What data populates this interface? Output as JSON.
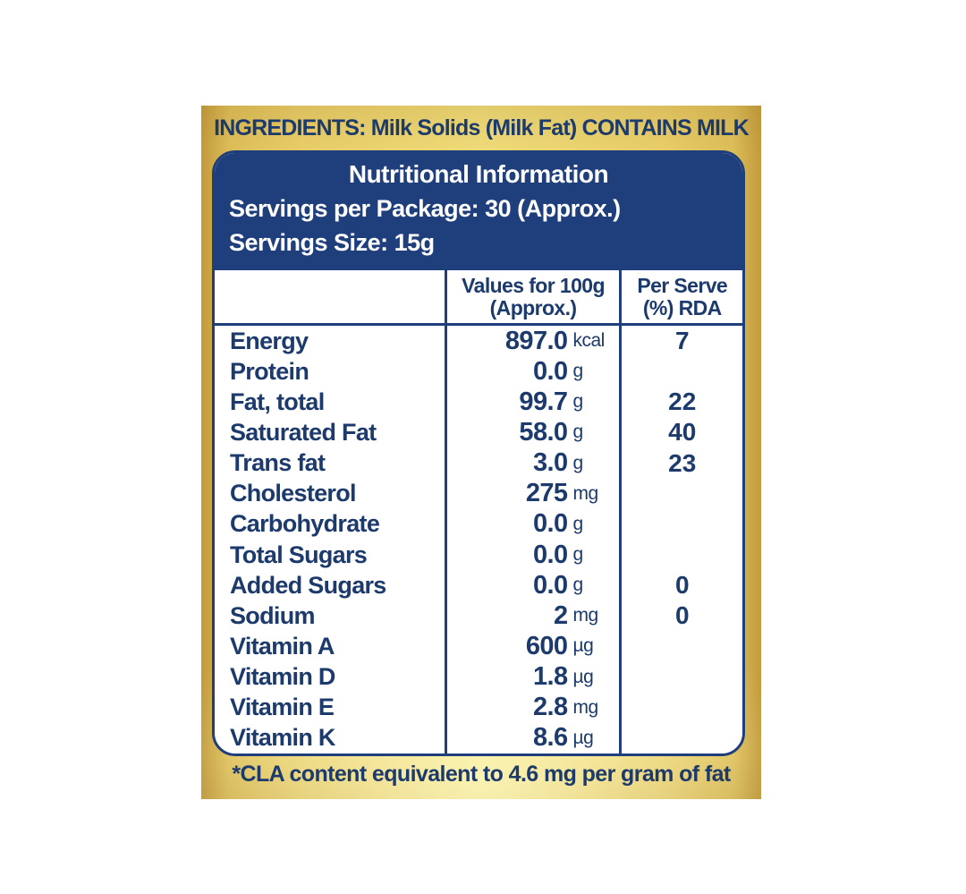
{
  "colors": {
    "navy": "#1f3e7c",
    "text_navy": "#1c3a6b",
    "gold_edge": "#c29a3c",
    "gold_mid": "#e7cc68",
    "gold_light": "#f6ec96"
  },
  "ingredients_line": "INGREDIENTS: Milk Solids (Milk Fat) CONTAINS MILK",
  "header": {
    "title": "Nutritional Information",
    "servings_per_package": "Servings per Package: 30 (Approx.)",
    "serving_size": "Servings Size: 15g"
  },
  "table": {
    "columns": {
      "nutrient": "",
      "values_line1": "Values for 100g",
      "values_line2": "(Approx.)",
      "per_serve_line1": "Per Serve",
      "per_serve_line2": "(%) RDA"
    },
    "rows": [
      {
        "nutrient": "Energy",
        "value": "897.0",
        "unit": "kcal",
        "per_serve": "7"
      },
      {
        "nutrient": "Protein",
        "value": "0.0",
        "unit": "g",
        "per_serve": ""
      },
      {
        "nutrient": "Fat, total",
        "value": "99.7",
        "unit": "g",
        "per_serve": "22"
      },
      {
        "nutrient": "Saturated Fat",
        "value": "58.0",
        "unit": "g",
        "per_serve": "40"
      },
      {
        "nutrient": "Trans fat",
        "value": "3.0",
        "unit": "g",
        "per_serve": "23"
      },
      {
        "nutrient": "Cholesterol",
        "value": "275",
        "unit": "mg",
        "per_serve": ""
      },
      {
        "nutrient": "Carbohydrate",
        "value": "0.0",
        "unit": "g",
        "per_serve": ""
      },
      {
        "nutrient": "Total Sugars",
        "value": "0.0",
        "unit": "g",
        "per_serve": ""
      },
      {
        "nutrient": "Added Sugars",
        "value": "0.0",
        "unit": "g",
        "per_serve": "0"
      },
      {
        "nutrient": "Sodium",
        "value": "2",
        "unit": "mg",
        "per_serve": "0"
      },
      {
        "nutrient": "Vitamin A",
        "value": "600",
        "unit": "µg",
        "per_serve": ""
      },
      {
        "nutrient": "Vitamin D",
        "value": "1.8",
        "unit": "µg",
        "per_serve": ""
      },
      {
        "nutrient": "Vitamin E",
        "value": "2.8",
        "unit": "mg",
        "per_serve": ""
      },
      {
        "nutrient": "Vitamin K",
        "value": "8.6",
        "unit": "µg",
        "per_serve": ""
      }
    ]
  },
  "footnote": "*CLA content equivalent to 4.6 mg per gram of fat"
}
